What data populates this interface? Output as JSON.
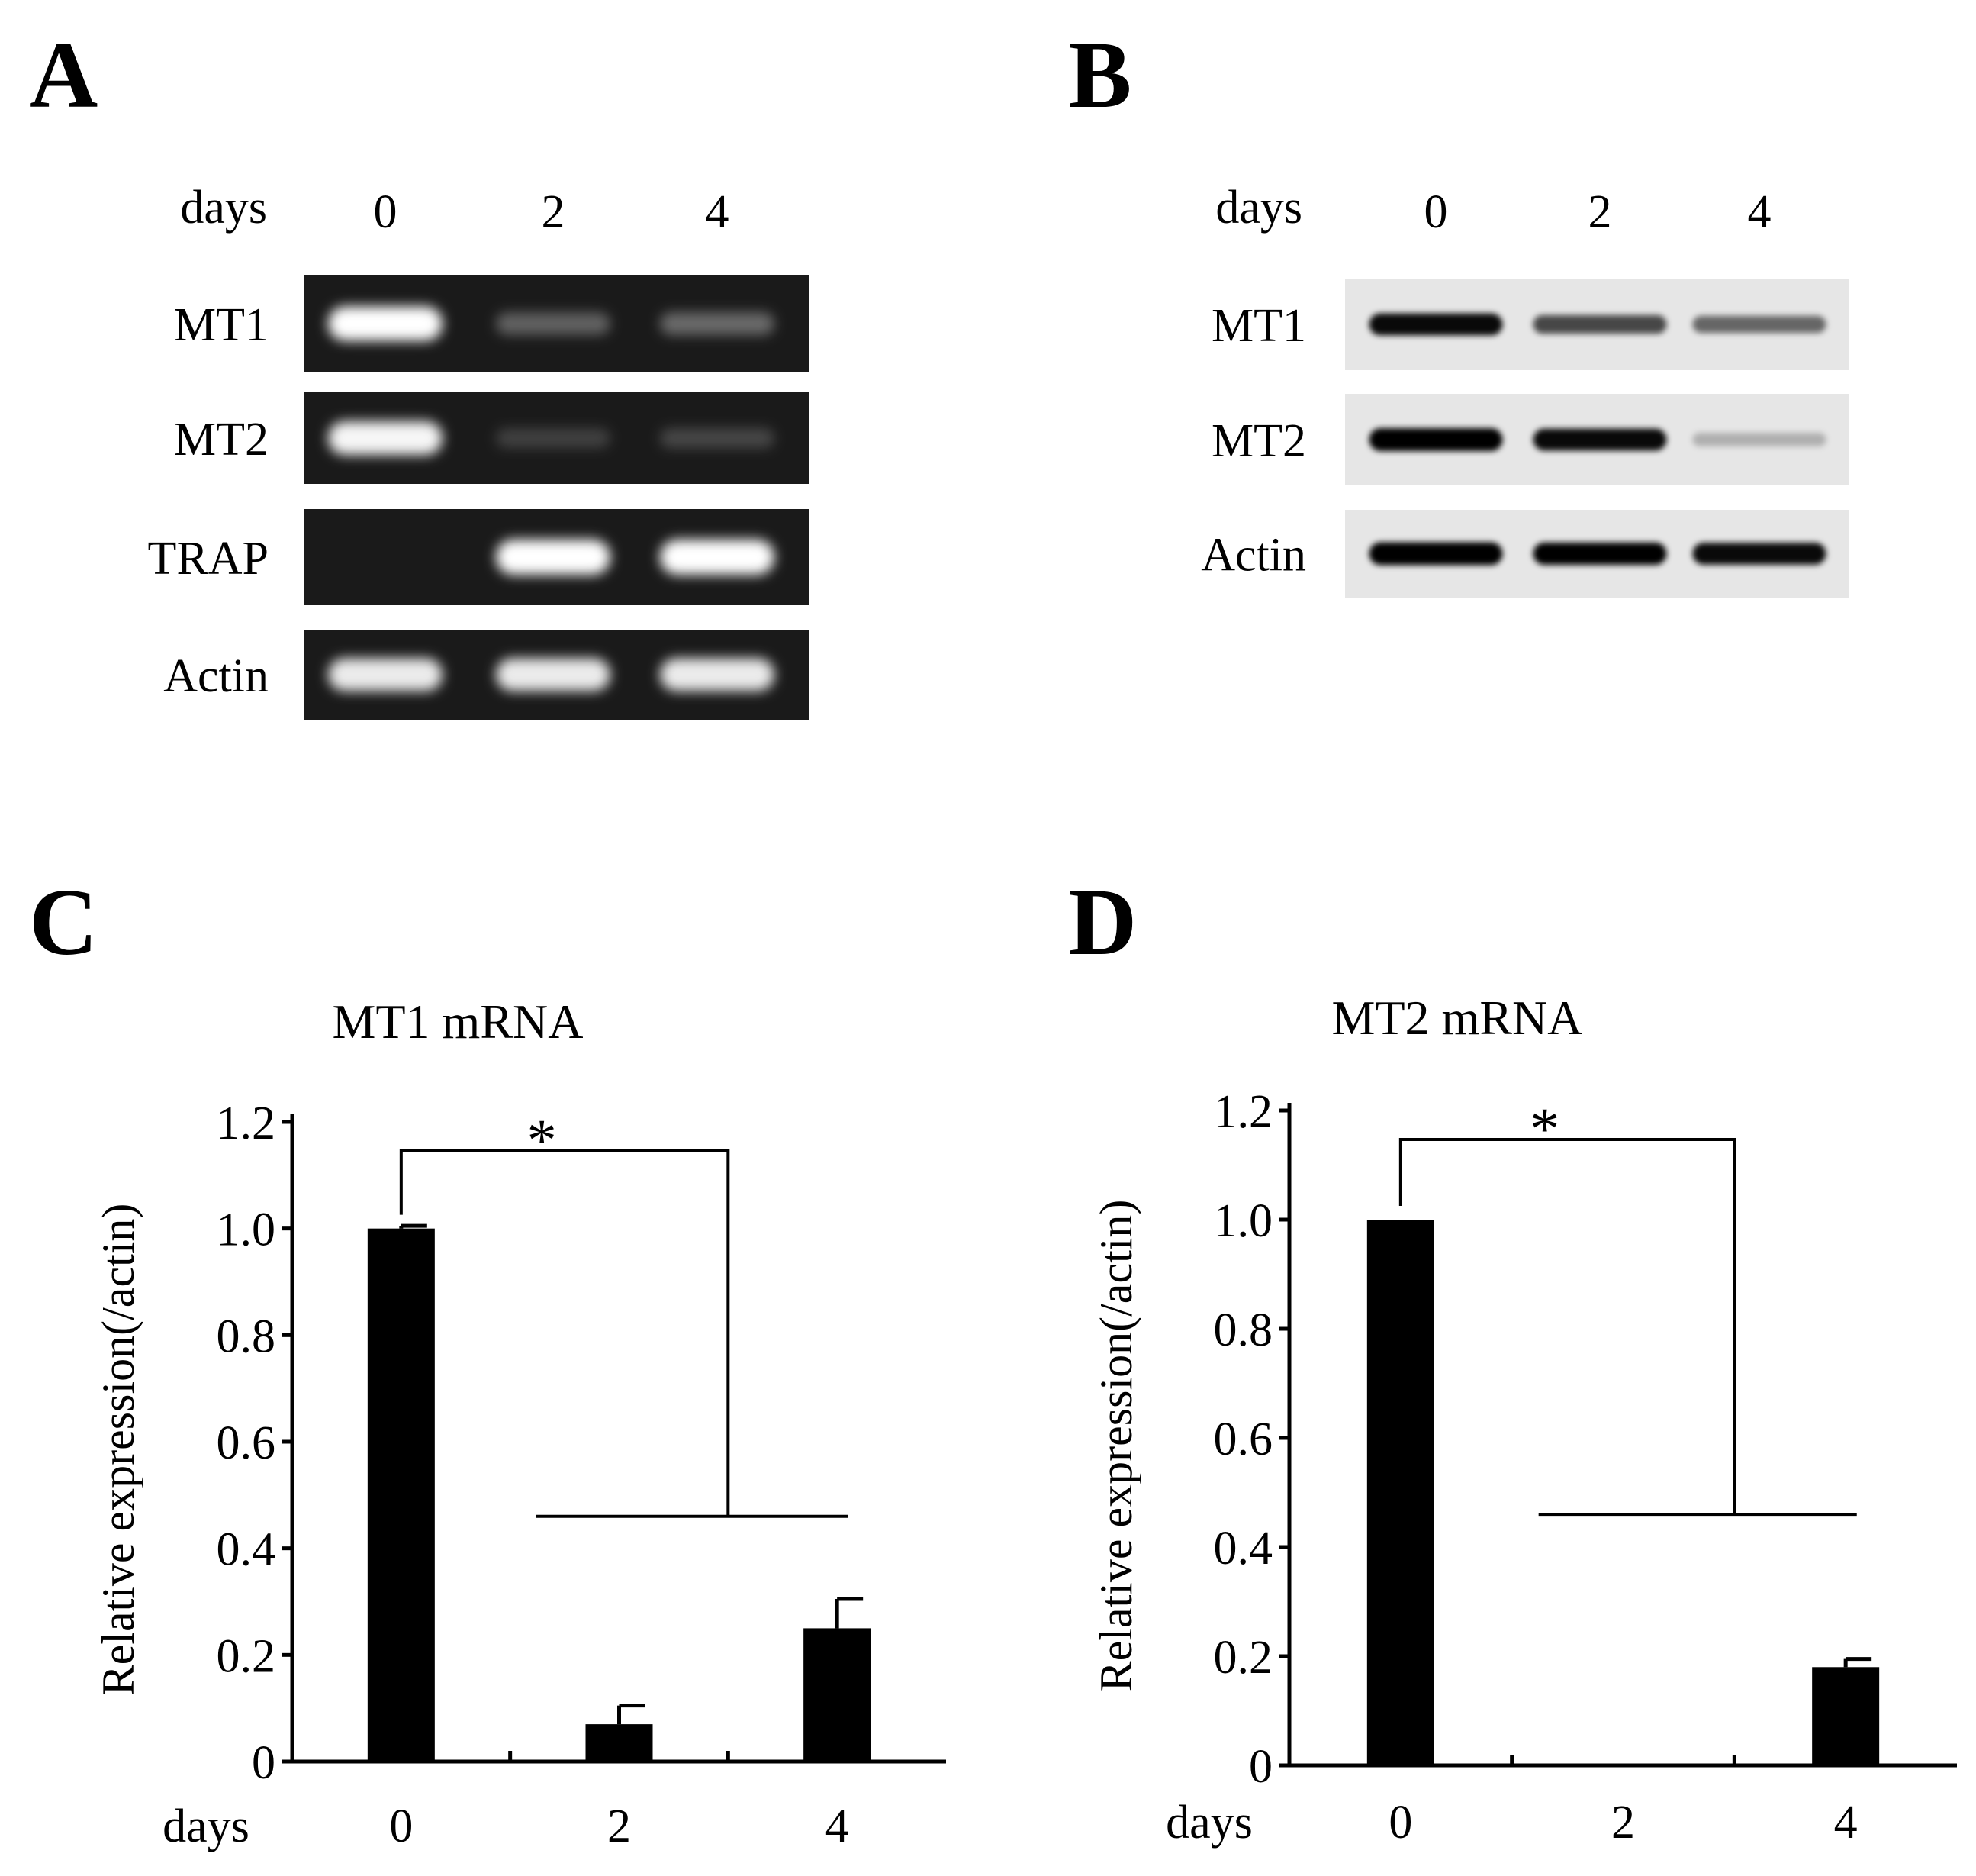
{
  "panels": {
    "A": {
      "letter": "A",
      "lane_header": "days",
      "lanes": [
        "0",
        "2",
        "4"
      ],
      "rows": [
        {
          "label": "MT1",
          "intensities": [
            0.95,
            0.18,
            0.22
          ]
        },
        {
          "label": "MT2",
          "intensities": [
            0.9,
            0.02,
            0.05
          ]
        },
        {
          "label": "TRAP",
          "intensities": [
            0.0,
            1.0,
            1.0
          ]
        },
        {
          "label": "Actin",
          "intensities": [
            0.85,
            0.85,
            0.85
          ]
        }
      ],
      "style": {
        "background": "#1a1a1a",
        "band_color": "#ffffff"
      }
    },
    "B": {
      "letter": "B",
      "lane_header": "days",
      "lanes": [
        "0",
        "2",
        "4"
      ],
      "rows": [
        {
          "label": "MT1",
          "intensities": [
            0.9,
            0.6,
            0.45
          ]
        },
        {
          "label": "MT2",
          "intensities": [
            1.0,
            0.9,
            0.1
          ]
        },
        {
          "label": "Actin",
          "intensities": [
            1.0,
            0.95,
            0.9
          ]
        }
      ],
      "style": {
        "background": "#e6e6e6",
        "band_color": "#000000"
      }
    }
  },
  "chart_data": [
    {
      "panel": "C",
      "type": "bar",
      "title": "MT1 mRNA",
      "categories": [
        "0",
        "2",
        "4"
      ],
      "values": [
        1.0,
        0.07,
        0.25
      ],
      "errors": [
        0.005,
        0.035,
        0.055
      ],
      "xlabel": "days",
      "ylabel": "Relative  expression(/actin)",
      "ylim": [
        0,
        1.2
      ],
      "yticks": [
        "0",
        "0.2",
        "0.4",
        "0.6",
        "0.8",
        "1.0",
        "1.2"
      ],
      "significance": "*",
      "bar_color": "#000000"
    },
    {
      "panel": "D",
      "type": "bar",
      "title": "MT2 mRNA",
      "categories": [
        "0",
        "2",
        "4"
      ],
      "values": [
        1.0,
        0.0,
        0.18
      ],
      "errors": [
        0.0,
        0.0,
        0.015
      ],
      "xlabel": "days",
      "ylabel": "Relative  expression(/actin)",
      "ylim": [
        0,
        1.2
      ],
      "yticks": [
        "0",
        "0.2",
        "0.4",
        "0.6",
        "0.8",
        "1.0",
        "1.2"
      ],
      "significance": "*",
      "bar_color": "#000000"
    }
  ]
}
